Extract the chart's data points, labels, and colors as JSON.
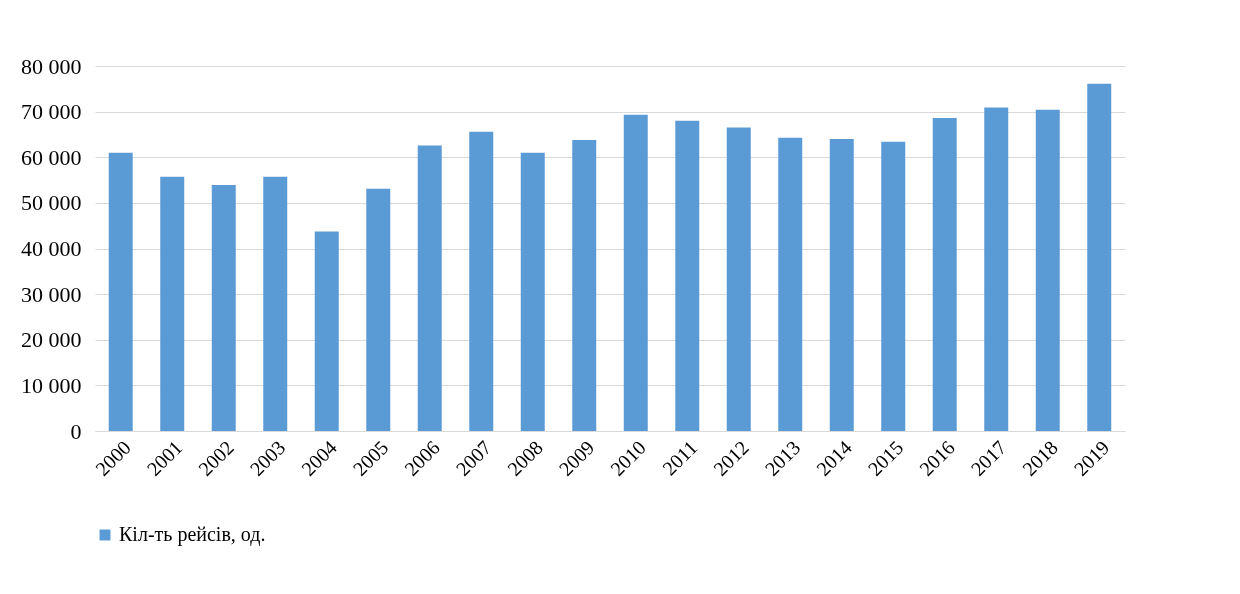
{
  "chart_data": {
    "type": "bar",
    "categories": [
      "2000",
      "2001",
      "2002",
      "2003",
      "2004",
      "2005",
      "2006",
      "2007",
      "2008",
      "2009",
      "2010",
      "2011",
      "2012",
      "2013",
      "2014",
      "2015",
      "2016",
      "2017",
      "2018",
      "2019"
    ],
    "series": [
      {
        "name": "Кіл-ть рейсів, од.",
        "color": "#5b9bd5",
        "values": [
          61000,
          55700,
          53900,
          55700,
          43700,
          53100,
          62600,
          65600,
          61000,
          63800,
          69300,
          68000,
          66500,
          64300,
          64000,
          63400,
          68600,
          70900,
          70400,
          76100
        ]
      }
    ],
    "ylim": [
      0,
      80000
    ],
    "yticks": [
      {
        "value": 0,
        "label": "0"
      },
      {
        "value": 10000,
        "label": "10 000"
      },
      {
        "value": 20000,
        "label": "20 000"
      },
      {
        "value": 30000,
        "label": "30 000"
      },
      {
        "value": 40000,
        "label": "40 000"
      },
      {
        "value": 50000,
        "label": "50 000"
      },
      {
        "value": 60000,
        "label": "60 000"
      },
      {
        "value": 70000,
        "label": "70 000"
      },
      {
        "value": 80000,
        "label": "80 000"
      }
    ],
    "grid": "y",
    "legend": "bottom"
  }
}
